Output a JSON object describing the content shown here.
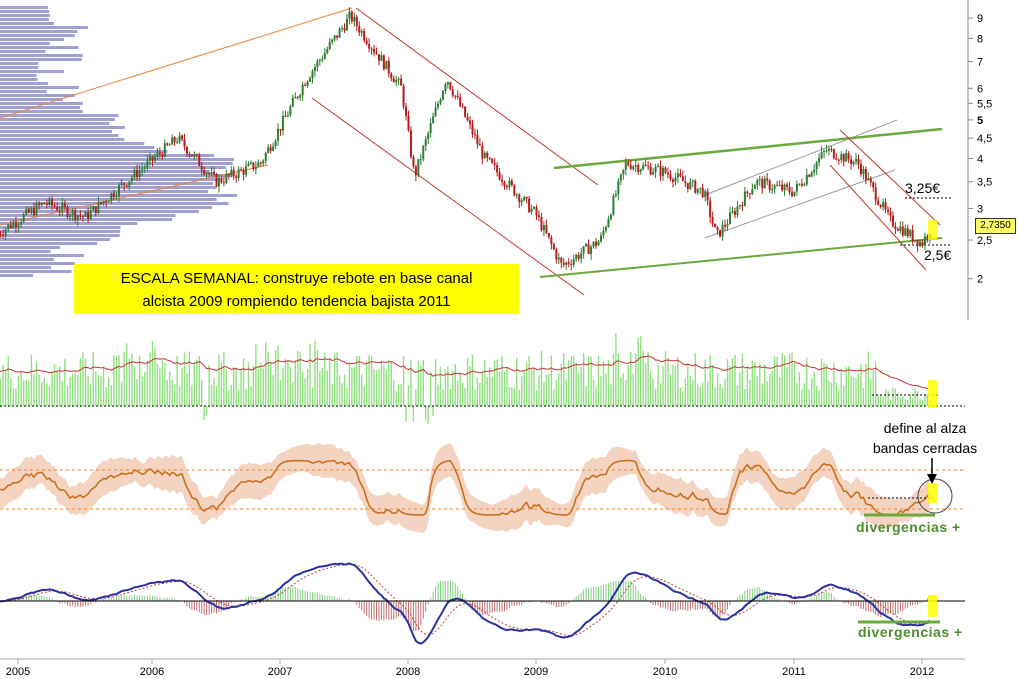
{
  "chart_data": {
    "type": "line",
    "subtype": "weekly candlestick price chart with indicator panels",
    "log_scale": true,
    "grid": false,
    "x_axis": {
      "labels": [
        "2005",
        "2006",
        "2007",
        "2008",
        "2009",
        "2010",
        "2011",
        "2012"
      ],
      "range": [
        2004.85,
        2012.2
      ]
    },
    "y_axis": {
      "range": [
        1.9,
        9.6
      ],
      "tick_values": [
        9,
        8,
        7,
        6,
        5.5,
        5,
        4.5,
        4,
        3.5,
        3,
        2.5,
        2
      ],
      "tick_labels": [
        "9",
        "8",
        "7",
        "6",
        "5,5",
        "5",
        "4,5",
        "4",
        "3,5",
        "3",
        "2,5",
        "2"
      ]
    },
    "price_keypoints": {
      "x": [
        2004.85,
        2005.2,
        2005.5,
        2005.85,
        2006.2,
        2006.5,
        2006.85,
        2007.2,
        2007.55,
        2007.95,
        2008.05,
        2008.3,
        2008.6,
        2009.0,
        2009.2,
        2009.5,
        2009.7,
        2010.0,
        2010.3,
        2010.4,
        2010.7,
        2011.0,
        2011.25,
        2011.5,
        2011.75,
        2012.0,
        2012.08
      ],
      "y": [
        2.6,
        3.1,
        2.85,
        3.6,
        4.5,
        3.5,
        3.9,
        6.3,
        9.1,
        6.0,
        3.6,
        6.4,
        4.0,
        2.9,
        2.15,
        2.5,
        3.9,
        3.7,
        3.3,
        2.55,
        3.5,
        3.3,
        4.2,
        3.9,
        2.8,
        2.45,
        2.735
      ]
    },
    "current_price_label": "2,7350",
    "annotations": {
      "title_box": [
        "ESCALA SEMANAL: construye rebote en base canal",
        "alcista 2009 rompiendo tendencia bajista 2011"
      ],
      "target_high": "3,25€",
      "target_low": "2,5€",
      "bands_note": [
        "define al alza",
        "bandas cerradas"
      ],
      "divergence_1": "divergencias +",
      "divergence_2": "divergencias +"
    },
    "colors": {
      "candle_up": "#2e7d32",
      "candle_down": "#b71c1c",
      "volume_profile": "#8080c8",
      "channel_green": "#6aaa3a",
      "channel_red": "#c0392b",
      "trend_orange": "#e8833a",
      "volume_bars": "#90e080",
      "volume_ma": "#c83232",
      "oscillator": "#c87020",
      "band_fill": "#f2cdb6",
      "macd": "#2a32a0",
      "highlight": "#ffff00"
    }
  }
}
